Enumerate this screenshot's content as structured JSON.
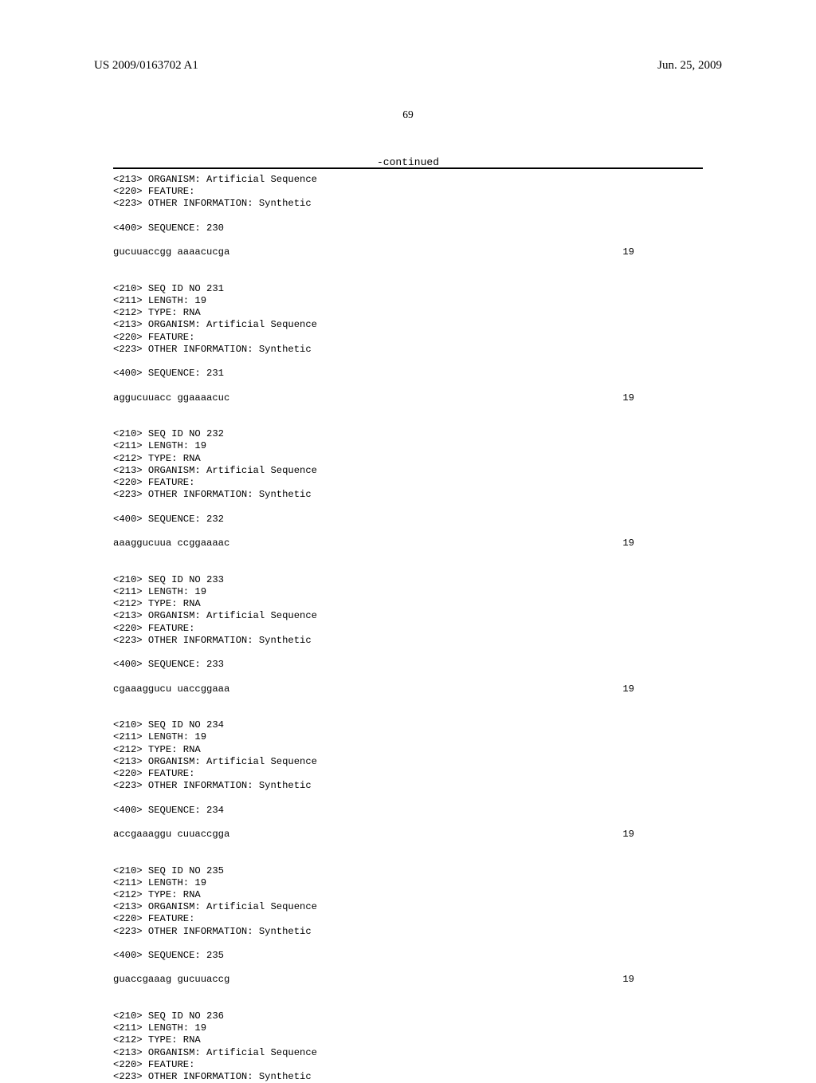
{
  "header": {
    "pub_number": "US 2009/0163702 A1",
    "pub_date": "Jun. 25, 2009"
  },
  "page_number": "69",
  "continued_label": "-continued",
  "entries": [
    {
      "pre_lines": [
        "<213> ORGANISM: Artificial Sequence",
        "<220> FEATURE:",
        "<223> OTHER INFORMATION: Synthetic"
      ],
      "seq_label": "<400> SEQUENCE: 230",
      "sequence": "gucuuaccgg aaaacucga",
      "length_num": "19"
    },
    {
      "pre_lines": [
        "<210> SEQ ID NO 231",
        "<211> LENGTH: 19",
        "<212> TYPE: RNA",
        "<213> ORGANISM: Artificial Sequence",
        "<220> FEATURE:",
        "<223> OTHER INFORMATION: Synthetic"
      ],
      "seq_label": "<400> SEQUENCE: 231",
      "sequence": "aggucuuacc ggaaaacuc",
      "length_num": "19"
    },
    {
      "pre_lines": [
        "<210> SEQ ID NO 232",
        "<211> LENGTH: 19",
        "<212> TYPE: RNA",
        "<213> ORGANISM: Artificial Sequence",
        "<220> FEATURE:",
        "<223> OTHER INFORMATION: Synthetic"
      ],
      "seq_label": "<400> SEQUENCE: 232",
      "sequence": "aaaggucuua ccggaaaac",
      "length_num": "19"
    },
    {
      "pre_lines": [
        "<210> SEQ ID NO 233",
        "<211> LENGTH: 19",
        "<212> TYPE: RNA",
        "<213> ORGANISM: Artificial Sequence",
        "<220> FEATURE:",
        "<223> OTHER INFORMATION: Synthetic"
      ],
      "seq_label": "<400> SEQUENCE: 233",
      "sequence": "cgaaaggucu uaccggaaa",
      "length_num": "19"
    },
    {
      "pre_lines": [
        "<210> SEQ ID NO 234",
        "<211> LENGTH: 19",
        "<212> TYPE: RNA",
        "<213> ORGANISM: Artificial Sequence",
        "<220> FEATURE:",
        "<223> OTHER INFORMATION: Synthetic"
      ],
      "seq_label": "<400> SEQUENCE: 234",
      "sequence": "accgaaaggu cuuaccgga",
      "length_num": "19"
    },
    {
      "pre_lines": [
        "<210> SEQ ID NO 235",
        "<211> LENGTH: 19",
        "<212> TYPE: RNA",
        "<213> ORGANISM: Artificial Sequence",
        "<220> FEATURE:",
        "<223> OTHER INFORMATION: Synthetic"
      ],
      "seq_label": "<400> SEQUENCE: 235",
      "sequence": "guaccgaaag gucuuaccg",
      "length_num": "19"
    },
    {
      "pre_lines": [
        "<210> SEQ ID NO 236",
        "<211> LENGTH: 19",
        "<212> TYPE: RNA",
        "<213> ORGANISM: Artificial Sequence",
        "<220> FEATURE:",
        "<223> OTHER INFORMATION: Synthetic"
      ],
      "seq_label": null,
      "sequence": null,
      "length_num": null
    }
  ]
}
